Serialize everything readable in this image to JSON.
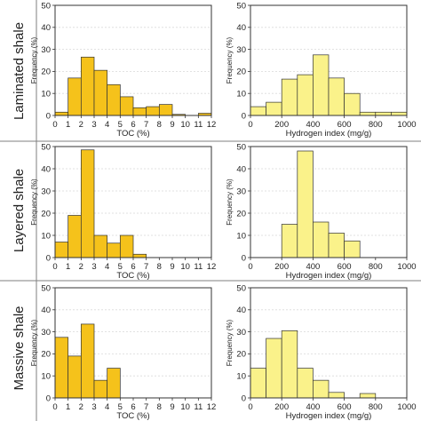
{
  "rows": [
    {
      "label": "Laminated shale"
    },
    {
      "label": "Layered shale"
    },
    {
      "label": "Massive shale"
    }
  ],
  "colors": {
    "toc_fill": "#F5C21B",
    "hi_fill": "#FAF28A",
    "bar_stroke": "#333333",
    "frame": "#333333",
    "grid": "#d9d9d9",
    "divider": "#7f7f7f"
  },
  "chart_data": [
    {
      "type": "bar",
      "id": "laminated-toc",
      "xlabel": "TOC (%)",
      "ylabel": "Frequency (%)",
      "bin_start": 0,
      "bin_width": 1,
      "xlim": [
        0,
        12
      ],
      "xticks": [
        0,
        1,
        2,
        3,
        4,
        5,
        6,
        7,
        8,
        9,
        10,
        11,
        12
      ],
      "ylim": [
        0,
        50
      ],
      "yticks": [
        0,
        10,
        20,
        30,
        40,
        50
      ],
      "grid": "y-dashed",
      "values": [
        1.5,
        17,
        26.5,
        20.5,
        14,
        8.5,
        3.5,
        4,
        5,
        0.5,
        0,
        1
      ]
    },
    {
      "type": "bar",
      "id": "laminated-hi",
      "xlabel": "Hydrogen index (mg/g)",
      "ylabel": "Frequency (%)",
      "bin_start": 0,
      "bin_width": 100,
      "xlim": [
        0,
        1000
      ],
      "xticks": [
        0,
        200,
        400,
        600,
        800,
        1000
      ],
      "ylim": [
        0,
        50
      ],
      "yticks": [
        0,
        10,
        20,
        30,
        40,
        50
      ],
      "grid": "y-dashed",
      "values": [
        4,
        6,
        16.5,
        18.5,
        27.5,
        17,
        10,
        1.5,
        1.5,
        1.5
      ]
    },
    {
      "type": "bar",
      "id": "layered-toc",
      "xlabel": "TOC (%)",
      "ylabel": "Frequency (%)",
      "bin_start": 0,
      "bin_width": 1,
      "xlim": [
        0,
        12
      ],
      "xticks": [
        0,
        1,
        2,
        3,
        4,
        5,
        6,
        7,
        8,
        9,
        10,
        11,
        12
      ],
      "ylim": [
        0,
        50
      ],
      "yticks": [
        0,
        10,
        20,
        30,
        40,
        50
      ],
      "grid": "y-dashed",
      "values": [
        7,
        19,
        48.5,
        10,
        6.5,
        10,
        1.5,
        0,
        0,
        0,
        0,
        0
      ]
    },
    {
      "type": "bar",
      "id": "layered-hi",
      "xlabel": "Hydrogen index (mg/g)",
      "ylabel": "Frequency (%)",
      "bin_start": 0,
      "bin_width": 100,
      "xlim": [
        0,
        1000
      ],
      "xticks": [
        0,
        200,
        400,
        600,
        800,
        1000
      ],
      "ylim": [
        0,
        50
      ],
      "yticks": [
        0,
        10,
        20,
        30,
        40,
        50
      ],
      "grid": "y-dashed",
      "values": [
        0,
        0,
        15,
        48,
        16,
        11,
        7.5,
        0,
        0,
        0
      ]
    },
    {
      "type": "bar",
      "id": "massive-toc",
      "xlabel": "TOC (%)",
      "ylabel": "Frequency (%)",
      "bin_start": 0,
      "bin_width": 1,
      "xlim": [
        0,
        12
      ],
      "xticks": [
        0,
        1,
        2,
        3,
        4,
        5,
        6,
        7,
        8,
        9,
        10,
        11,
        12
      ],
      "ylim": [
        0,
        50
      ],
      "yticks": [
        0,
        10,
        20,
        30,
        40,
        50
      ],
      "grid": "y-dashed",
      "values": [
        27.5,
        19,
        33.5,
        8,
        13.5,
        0,
        0,
        0,
        0,
        0,
        0,
        0
      ]
    },
    {
      "type": "bar",
      "id": "massive-hi",
      "xlabel": "Hydrogen index (mg/g)",
      "ylabel": "Frequency (%)",
      "bin_start": 0,
      "bin_width": 100,
      "xlim": [
        0,
        1000
      ],
      "xticks": [
        0,
        200,
        400,
        600,
        800,
        1000
      ],
      "ylim": [
        0,
        50
      ],
      "yticks": [
        0,
        10,
        20,
        30,
        40,
        50
      ],
      "grid": "y-dashed",
      "values": [
        13.5,
        27,
        30.5,
        13.5,
        8,
        2.5,
        0,
        2,
        0,
        0
      ]
    }
  ]
}
